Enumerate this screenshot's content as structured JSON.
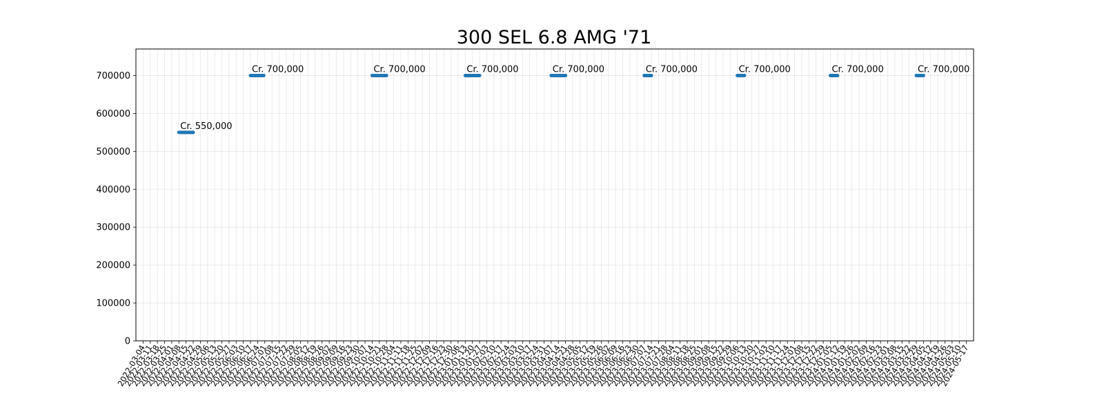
{
  "chart_data": {
    "type": "line",
    "title": "300 SEL 6.8 AMG '71",
    "xlabel": "",
    "ylabel": "",
    "ylim": [
      0,
      770000
    ],
    "grid": true,
    "legend": "none",
    "y_ticks": [
      0,
      100000,
      200000,
      300000,
      400000,
      500000,
      600000,
      700000
    ],
    "x_range": [
      "2022-02-25",
      "2024-05-24"
    ],
    "x_tick_start": "2022-03-04",
    "x_tick_end": "2024-05-17",
    "x_tick_step_days": 7,
    "series_color": "#1f77b4",
    "series": [
      {
        "segments": [
          {
            "x": [
              "2022-04-08",
              "2022-04-22"
            ],
            "y": 550000,
            "label": "Cr. 550,000"
          },
          {
            "x": [
              "2022-06-17",
              "2022-06-30"
            ],
            "y": 700000,
            "label": "Cr. 700,000"
          },
          {
            "x": [
              "2022-10-14",
              "2022-10-28"
            ],
            "y": 700000,
            "label": "Cr. 700,000"
          },
          {
            "x": [
              "2023-01-13",
              "2023-01-27"
            ],
            "y": 700000,
            "label": "Cr. 700,000"
          },
          {
            "x": [
              "2023-04-07",
              "2023-04-21"
            ],
            "y": 700000,
            "label": "Cr. 700,000"
          },
          {
            "x": [
              "2023-07-07",
              "2023-07-14"
            ],
            "y": 700000,
            "label": "Cr. 700,000"
          },
          {
            "x": [
              "2023-10-06",
              "2023-10-13"
            ],
            "y": 700000,
            "label": "Cr. 700,000"
          },
          {
            "x": [
              "2024-01-05",
              "2024-01-12"
            ],
            "y": 700000,
            "label": "Cr. 700,000"
          },
          {
            "x": [
              "2024-03-29",
              "2024-04-05"
            ],
            "y": 700000,
            "label": "Cr. 700,000"
          }
        ]
      }
    ]
  }
}
